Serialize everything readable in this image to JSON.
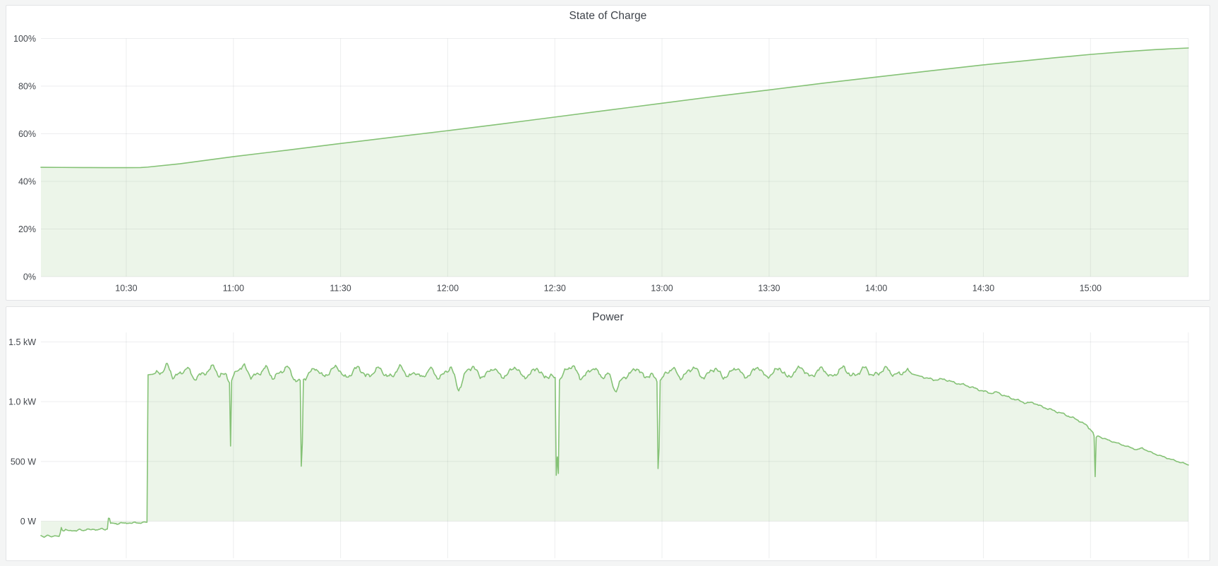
{
  "page": {
    "background": "#f4f5f5",
    "panel_background": "#ffffff",
    "panel_border": "#e3e4e6",
    "series_green": "#85c276",
    "series_fill": "rgba(135,195,120,0.16)"
  },
  "panels": [
    {
      "title": "State of Charge"
    },
    {
      "title": "Power"
    }
  ],
  "chart_data": [
    {
      "type": "area",
      "title": "State of Charge",
      "xlabel": "",
      "ylabel": "",
      "x_axis": "time of day",
      "x_range_minutes": [
        606.1,
        927.4
      ],
      "x_ticks": [
        {
          "m": 630,
          "label": "10:30"
        },
        {
          "m": 660,
          "label": "11:00"
        },
        {
          "m": 690,
          "label": "11:30"
        },
        {
          "m": 720,
          "label": "12:00"
        },
        {
          "m": 750,
          "label": "12:30"
        },
        {
          "m": 780,
          "label": "13:00"
        },
        {
          "m": 810,
          "label": "13:30"
        },
        {
          "m": 840,
          "label": "14:00"
        },
        {
          "m": 870,
          "label": "14:30"
        },
        {
          "m": 900,
          "label": "15:00"
        }
      ],
      "show_x_labels": true,
      "ylim": [
        0,
        100
      ],
      "y_ticks": [
        {
          "v": 0,
          "label": "0%"
        },
        {
          "v": 20,
          "label": "20%"
        },
        {
          "v": 40,
          "label": "40%"
        },
        {
          "v": 60,
          "label": "60%"
        },
        {
          "v": 80,
          "label": "80%"
        },
        {
          "v": 100,
          "label": "100%"
        }
      ],
      "grid": true,
      "legend": "none",
      "points": [
        [
          606.1,
          45.9
        ],
        [
          612,
          45.85
        ],
        [
          618,
          45.8
        ],
        [
          624,
          45.75
        ],
        [
          630,
          45.75
        ],
        [
          634,
          45.8
        ],
        [
          636,
          46.0
        ],
        [
          645,
          47.4
        ],
        [
          660,
          50.4
        ],
        [
          675,
          53.1
        ],
        [
          690,
          55.9
        ],
        [
          705,
          58.6
        ],
        [
          720,
          61.3
        ],
        [
          735,
          64.1
        ],
        [
          750,
          67.0
        ],
        [
          765,
          69.9
        ],
        [
          780,
          72.8
        ],
        [
          795,
          75.7
        ],
        [
          810,
          78.4
        ],
        [
          825,
          81.2
        ],
        [
          840,
          83.8
        ],
        [
          855,
          86.4
        ],
        [
          870,
          88.9
        ],
        [
          880,
          90.4
        ],
        [
          890,
          91.9
        ],
        [
          900,
          93.3
        ],
        [
          910,
          94.5
        ],
        [
          918,
          95.3
        ],
        [
          923,
          95.7
        ],
        [
          927.4,
          96.0
        ]
      ],
      "texture": []
    },
    {
      "type": "area",
      "title": "Power",
      "xlabel": "",
      "ylabel": "",
      "x_axis": "time of day",
      "x_range_minutes": [
        606.1,
        927.4
      ],
      "x_ticks": [
        {
          "m": 630,
          "label": "10:30"
        },
        {
          "m": 660,
          "label": "11:00"
        },
        {
          "m": 690,
          "label": "11:30"
        },
        {
          "m": 720,
          "label": "12:00"
        },
        {
          "m": 750,
          "label": "12:30"
        },
        {
          "m": 780,
          "label": "13:00"
        },
        {
          "m": 810,
          "label": "13:30"
        },
        {
          "m": 840,
          "label": "14:00"
        },
        {
          "m": 870,
          "label": "14:30"
        },
        {
          "m": 900,
          "label": "15:00"
        }
      ],
      "show_x_labels": false,
      "ylim": [
        -310,
        1590
      ],
      "y_ticks": [
        {
          "v": 0,
          "label": "0 W"
        },
        {
          "v": 500,
          "label": "500 W"
        },
        {
          "v": 1000,
          "label": "1.0 kW"
        },
        {
          "v": 1500,
          "label": "1.5 kW"
        }
      ],
      "grid": true,
      "legend": "none",
      "points": [
        [
          606.1,
          -120
        ],
        [
          607,
          -135
        ],
        [
          608,
          -115
        ],
        [
          609,
          -132
        ],
        [
          610,
          -122
        ],
        [
          611.4,
          -128
        ],
        [
          611.7,
          -45
        ],
        [
          612.2,
          -85
        ],
        [
          613,
          -72
        ],
        [
          614,
          -82
        ],
        [
          615,
          -75
        ],
        [
          616,
          -82
        ],
        [
          617,
          -70
        ],
        [
          618,
          -78
        ],
        [
          619,
          -66
        ],
        [
          620,
          -74
        ],
        [
          621,
          -66
        ],
        [
          622,
          -73
        ],
        [
          623,
          -64
        ],
        [
          624,
          -70
        ],
        [
          624.8,
          -62
        ],
        [
          625.1,
          72
        ],
        [
          625.5,
          -22
        ],
        [
          626.5,
          -18
        ],
        [
          627.5,
          -22
        ],
        [
          628.5,
          -14
        ],
        [
          629.5,
          -19
        ],
        [
          630.5,
          -13
        ],
        [
          631.5,
          -17
        ],
        [
          632.5,
          -12
        ],
        [
          633.5,
          -15
        ],
        [
          634.5,
          -11
        ],
        [
          635.8,
          -9
        ],
        [
          636.1,
          1225
        ],
        [
          638,
          1232
        ],
        [
          640,
          1250
        ],
        [
          641.5,
          1308
        ],
        [
          643,
          1210
        ],
        [
          645,
          1228
        ],
        [
          647,
          1288
        ],
        [
          649,
          1192
        ],
        [
          651,
          1226
        ],
        [
          653,
          1258
        ],
        [
          654.5,
          1302
        ],
        [
          656,
          1212
        ],
        [
          658,
          1232
        ],
        [
          658.9,
          1168
        ],
        [
          659.2,
          620
        ],
        [
          659.5,
          1175
        ],
        [
          661,
          1268
        ],
        [
          663,
          1298
        ],
        [
          665,
          1208
        ],
        [
          667,
          1228
        ],
        [
          669,
          1292
        ],
        [
          671,
          1198
        ],
        [
          673,
          1238
        ],
        [
          675,
          1298
        ],
        [
          677,
          1192
        ],
        [
          678.8,
          1160
        ],
        [
          679.1,
          110
        ],
        [
          679.5,
          1185
        ],
        [
          681,
          1228
        ],
        [
          683,
          1288
        ],
        [
          685,
          1208
        ],
        [
          687,
          1248
        ],
        [
          689,
          1302
        ],
        [
          691,
          1198
        ],
        [
          693,
          1232
        ],
        [
          695,
          1298
        ],
        [
          697,
          1208
        ],
        [
          699,
          1238
        ],
        [
          701,
          1288
        ],
        [
          703,
          1202
        ],
        [
          705,
          1232
        ],
        [
          707,
          1298
        ],
        [
          709,
          1202
        ],
        [
          711,
          1252
        ],
        [
          713,
          1192
        ],
        [
          715,
          1288
        ],
        [
          717,
          1202
        ],
        [
          719,
          1228
        ],
        [
          721,
          1298
        ],
        [
          723,
          1090
        ],
        [
          725,
          1242
        ],
        [
          727,
          1302
        ],
        [
          729,
          1208
        ],
        [
          731,
          1232
        ],
        [
          733,
          1288
        ],
        [
          735,
          1202
        ],
        [
          737,
          1238
        ],
        [
          739,
          1298
        ],
        [
          741,
          1202
        ],
        [
          743,
          1228
        ],
        [
          745,
          1288
        ],
        [
          747,
          1198
        ],
        [
          749,
          1228
        ],
        [
          750.2,
          1175
        ],
        [
          750.45,
          180
        ],
        [
          750.65,
          640
        ],
        [
          750.9,
          162
        ],
        [
          751.3,
          1188
        ],
        [
          753,
          1258
        ],
        [
          755,
          1308
        ],
        [
          757,
          1198
        ],
        [
          759,
          1232
        ],
        [
          761,
          1292
        ],
        [
          763,
          1202
        ],
        [
          765,
          1238
        ],
        [
          767,
          1085
        ],
        [
          769,
          1198
        ],
        [
          771,
          1232
        ],
        [
          773,
          1288
        ],
        [
          775,
          1202
        ],
        [
          777,
          1232
        ],
        [
          778.7,
          1165
        ],
        [
          779.0,
          100
        ],
        [
          779.4,
          1178
        ],
        [
          781,
          1228
        ],
        [
          783,
          1288
        ],
        [
          785,
          1198
        ],
        [
          787,
          1238
        ],
        [
          789,
          1298
        ],
        [
          791,
          1202
        ],
        [
          793,
          1232
        ],
        [
          795,
          1288
        ],
        [
          797,
          1198
        ],
        [
          799,
          1238
        ],
        [
          801,
          1292
        ],
        [
          803,
          1202
        ],
        [
          805,
          1238
        ],
        [
          807,
          1298
        ],
        [
          809,
          1202
        ],
        [
          811,
          1238
        ],
        [
          813,
          1288
        ],
        [
          815,
          1198
        ],
        [
          817,
          1242
        ],
        [
          819,
          1298
        ],
        [
          821,
          1208
        ],
        [
          823,
          1238
        ],
        [
          825,
          1288
        ],
        [
          827,
          1202
        ],
        [
          829,
          1242
        ],
        [
          831,
          1292
        ],
        [
          833,
          1208
        ],
        [
          835,
          1242
        ],
        [
          837,
          1288
        ],
        [
          839,
          1212
        ],
        [
          841,
          1248
        ],
        [
          843,
          1282
        ],
        [
          845,
          1218
        ],
        [
          847,
          1242
        ],
        [
          849,
          1262
        ],
        [
          850,
          1232
        ],
        [
          853,
          1208
        ],
        [
          856,
          1183
        ],
        [
          859,
          1188
        ],
        [
          862,
          1158
        ],
        [
          865,
          1138
        ],
        [
          868,
          1108
        ],
        [
          870,
          1088
        ],
        [
          872,
          1072
        ],
        [
          874,
          1078
        ],
        [
          876,
          1048
        ],
        [
          878,
          1028
        ],
        [
          880,
          1008
        ],
        [
          882,
          988
        ],
        [
          884,
          993
        ],
        [
          886,
          962
        ],
        [
          888,
          942
        ],
        [
          890,
          922
        ],
        [
          892,
          902
        ],
        [
          894,
          878
        ],
        [
          896,
          852
        ],
        [
          897,
          838
        ],
        [
          898,
          818
        ],
        [
          899,
          798
        ],
        [
          900,
          765
        ],
        [
          900.7,
          742
        ],
        [
          900.9,
          885
        ],
        [
          901.1,
          540
        ],
        [
          901.25,
          292
        ],
        [
          901.5,
          698
        ],
        [
          902,
          716
        ],
        [
          903,
          700
        ],
        [
          905,
          678
        ],
        [
          907,
          658
        ],
        [
          909,
          638
        ],
        [
          911,
          618
        ],
        [
          913,
          598
        ],
        [
          914.5,
          612
        ],
        [
          916,
          588
        ],
        [
          918,
          563
        ],
        [
          920,
          543
        ],
        [
          922,
          523
        ],
        [
          924,
          503
        ],
        [
          926,
          486
        ],
        [
          927.4,
          470
        ]
      ],
      "texture": [
        {
          "from": 637,
          "to": 849,
          "amp": 26
        },
        {
          "from": 612.5,
          "to": 635.5,
          "amp": 7
        },
        {
          "from": 852.5,
          "to": 899.5,
          "amp": 10
        },
        {
          "from": 903,
          "to": 927,
          "amp": 6
        }
      ]
    }
  ]
}
